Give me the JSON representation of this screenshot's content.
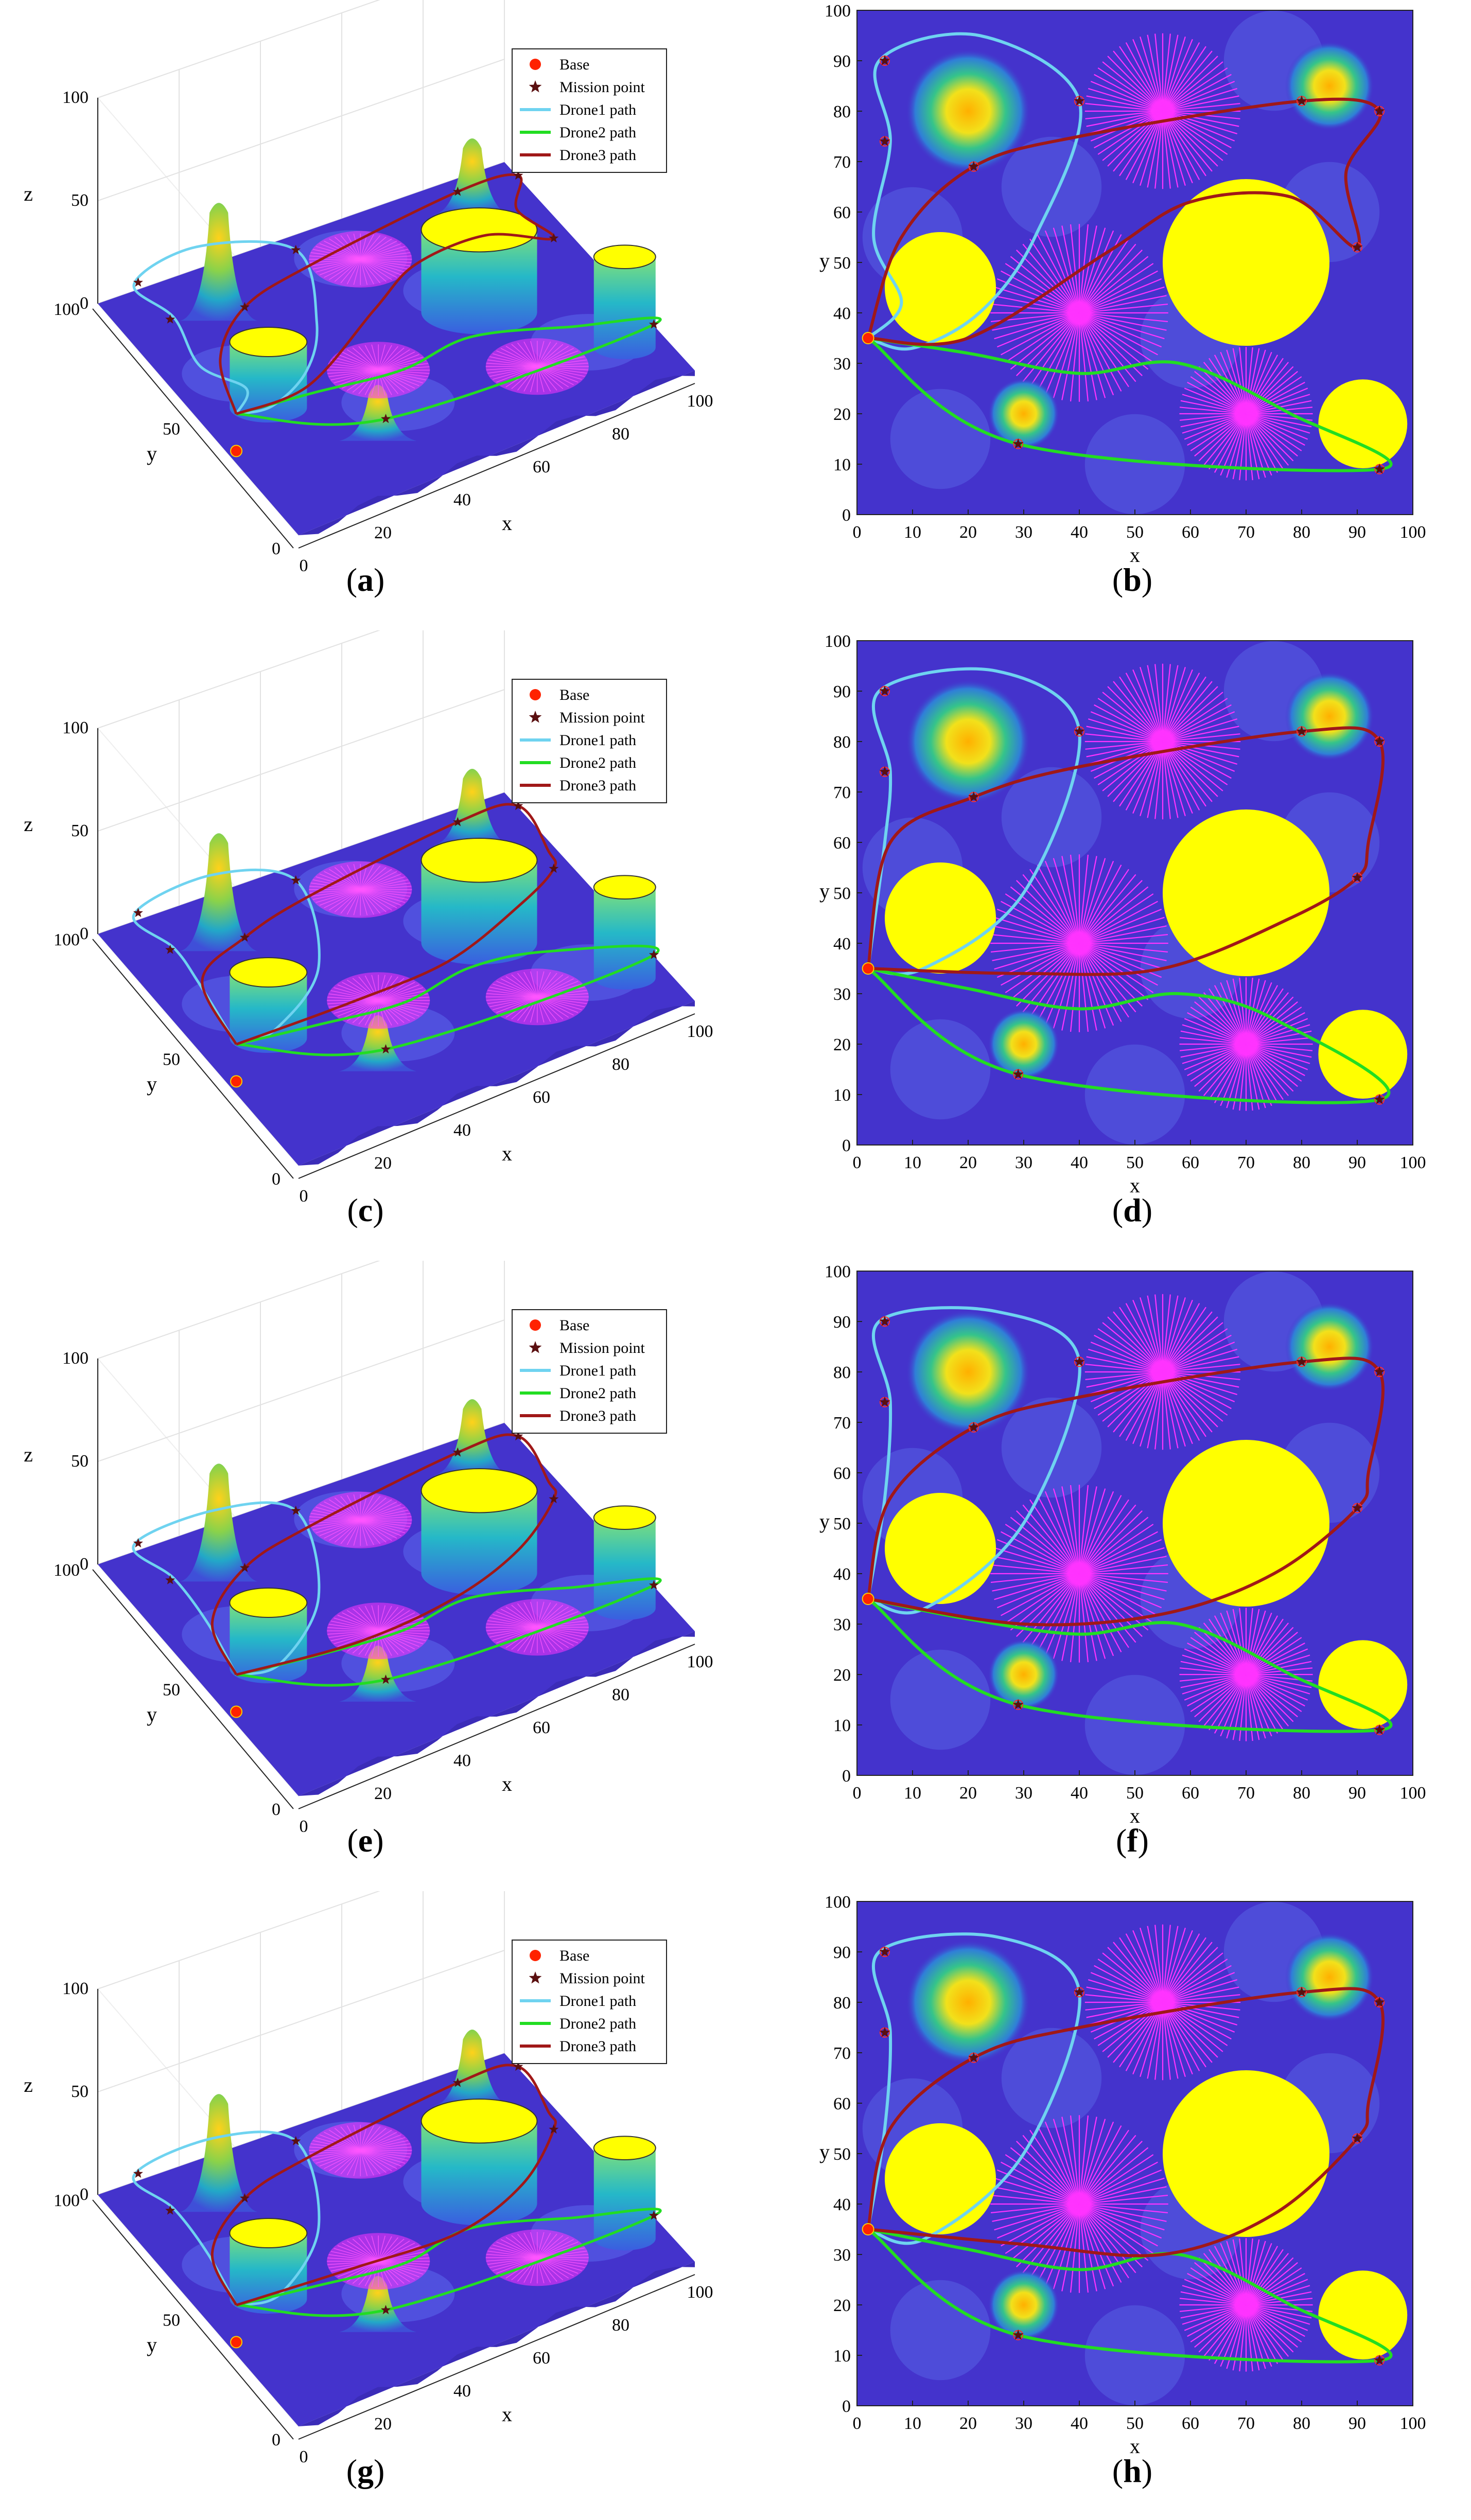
{
  "figure": {
    "row_captions": [
      [
        "a",
        "b"
      ],
      [
        "c",
        "d"
      ],
      [
        "e",
        "f"
      ],
      [
        "g",
        "h"
      ]
    ]
  },
  "legend": {
    "entries": [
      {
        "label": "Base",
        "marker": "dot",
        "color": "#ff2200"
      },
      {
        "label": "Mission point",
        "marker": "star",
        "color": "#5a0f10"
      },
      {
        "label": "Drone1 path",
        "marker": "line",
        "color": "#6fd3f0"
      },
      {
        "label": "Drone2 path",
        "marker": "line",
        "color": "#22dd22"
      },
      {
        "label": "Drone3 path",
        "marker": "line",
        "color": "#a01818"
      }
    ]
  },
  "colors": {
    "terrain": "#4433cc",
    "obstacle_cylinder": "#ffff00",
    "radar": "#ff33ff",
    "drone1": "#6fd3f0",
    "drone2": "#22dd22",
    "drone3": "#a01818",
    "mission": "#5a0f10",
    "base": "#ff2200"
  },
  "chart_data": [
    {
      "panel": "a",
      "type": "surface3d",
      "xlabel": "x",
      "ylabel": "y",
      "zlabel": "z",
      "x_ticks": [
        "0",
        "20",
        "40",
        "60",
        "80",
        "100"
      ],
      "y_ticks": [
        "0",
        "50",
        "100"
      ],
      "z_ticks": [
        "0",
        "50",
        "100"
      ],
      "legend": "top-right"
    },
    {
      "panel": "b",
      "type": "line",
      "xlabel": "x",
      "ylabel": "y",
      "xlim": [
        0,
        100
      ],
      "ylim": [
        0,
        100
      ],
      "x_ticks": [
        "0",
        "10",
        "20",
        "30",
        "40",
        "50",
        "60",
        "70",
        "80",
        "90",
        "100"
      ],
      "y_ticks": [
        "0",
        "10",
        "20",
        "30",
        "40",
        "50",
        "60",
        "70",
        "80",
        "90",
        "100"
      ],
      "base": [
        2,
        35
      ],
      "mission_points": [
        [
          5,
          90
        ],
        [
          5,
          74
        ],
        [
          21,
          69
        ],
        [
          40,
          82
        ],
        [
          80,
          82
        ],
        [
          94,
          80
        ],
        [
          90,
          53
        ],
        [
          29,
          14
        ],
        [
          94,
          9
        ]
      ],
      "obstacles": [
        {
          "type": "cylinder",
          "x": 15,
          "y": 45,
          "r": 10
        },
        {
          "type": "cylinder",
          "x": 70,
          "y": 50,
          "r": 15
        },
        {
          "type": "cylinder",
          "x": 91,
          "y": 18,
          "r": 8
        },
        {
          "type": "radar",
          "x": 55,
          "y": 80,
          "r": 14
        },
        {
          "type": "radar",
          "x": 40,
          "y": 40,
          "r": 16
        },
        {
          "type": "radar",
          "x": 70,
          "y": 20,
          "r": 12
        },
        {
          "type": "peak",
          "x": 20,
          "y": 80,
          "r": 7
        },
        {
          "type": "peak",
          "x": 85,
          "y": 85,
          "r": 5
        },
        {
          "type": "peak",
          "x": 30,
          "y": 20,
          "r": 4
        }
      ],
      "series": [
        {
          "name": "Drone1 path",
          "points": [
            [
              2,
              35
            ],
            [
              8,
              42
            ],
            [
              3,
              55
            ],
            [
              6,
              74
            ],
            [
              4,
              90
            ],
            [
              22,
              95
            ],
            [
              40,
              82
            ],
            [
              32,
              55
            ],
            [
              22,
              40
            ],
            [
              10,
              33
            ],
            [
              2,
              35
            ]
          ]
        },
        {
          "name": "Drone2 path",
          "points": [
            [
              2,
              35
            ],
            [
              29,
              14
            ],
            [
              94,
              9
            ],
            [
              78,
              20
            ],
            [
              58,
              30
            ],
            [
              40,
              28
            ],
            [
              20,
              32
            ],
            [
              2,
              35
            ]
          ]
        },
        {
          "name": "Drone3 path",
          "points": [
            [
              2,
              35
            ],
            [
              8,
              55
            ],
            [
              21,
              69
            ],
            [
              40,
              75
            ],
            [
              80,
              82
            ],
            [
              94,
              80
            ],
            [
              88,
              68
            ],
            [
              90,
              53
            ],
            [
              78,
              63
            ],
            [
              60,
              62
            ],
            [
              45,
              52
            ],
            [
              20,
              35
            ],
            [
              2,
              35
            ]
          ]
        }
      ]
    },
    {
      "panel": "c",
      "type": "surface3d",
      "xlabel": "x",
      "ylabel": "y",
      "zlabel": "z",
      "x_ticks": [
        "0",
        "20",
        "40",
        "60",
        "80",
        "100"
      ],
      "y_ticks": [
        "0",
        "50",
        "100"
      ],
      "z_ticks": [
        "0",
        "50",
        "100"
      ],
      "legend": "top-right"
    },
    {
      "panel": "d",
      "type": "line",
      "xlabel": "x",
      "ylabel": "y",
      "xlim": [
        0,
        100
      ],
      "ylim": [
        0,
        100
      ],
      "x_ticks": [
        "0",
        "10",
        "20",
        "30",
        "40",
        "50",
        "60",
        "70",
        "80",
        "90",
        "100"
      ],
      "y_ticks": [
        "0",
        "10",
        "20",
        "30",
        "40",
        "50",
        "60",
        "70",
        "80",
        "90",
        "100"
      ],
      "base": [
        2,
        35
      ],
      "mission_points": [
        [
          5,
          90
        ],
        [
          5,
          74
        ],
        [
          21,
          69
        ],
        [
          40,
          82
        ],
        [
          80,
          82
        ],
        [
          94,
          80
        ],
        [
          90,
          53
        ],
        [
          29,
          14
        ],
        [
          94,
          9
        ]
      ],
      "obstacles": [
        {
          "type": "cylinder",
          "x": 15,
          "y": 45,
          "r": 10
        },
        {
          "type": "cylinder",
          "x": 70,
          "y": 50,
          "r": 15
        },
        {
          "type": "cylinder",
          "x": 91,
          "y": 18,
          "r": 8
        },
        {
          "type": "radar",
          "x": 55,
          "y": 80,
          "r": 14
        },
        {
          "type": "radar",
          "x": 40,
          "y": 40,
          "r": 16
        },
        {
          "type": "radar",
          "x": 70,
          "y": 20,
          "r": 12
        },
        {
          "type": "peak",
          "x": 20,
          "y": 80,
          "r": 7
        },
        {
          "type": "peak",
          "x": 85,
          "y": 85,
          "r": 5
        },
        {
          "type": "peak",
          "x": 30,
          "y": 20,
          "r": 4
        }
      ],
      "series": [
        {
          "name": "Drone1 path",
          "points": [
            [
              2,
              35
            ],
            [
              5,
              60
            ],
            [
              6,
              74
            ],
            [
              4,
              90
            ],
            [
              25,
              94
            ],
            [
              40,
              82
            ],
            [
              30,
              50
            ],
            [
              12,
              35
            ],
            [
              2,
              35
            ]
          ]
        },
        {
          "name": "Drone2 path",
          "points": [
            [
              2,
              35
            ],
            [
              29,
              14
            ],
            [
              94,
              9
            ],
            [
              75,
              25
            ],
            [
              58,
              30
            ],
            [
              40,
              27
            ],
            [
              20,
              31
            ],
            [
              2,
              35
            ]
          ]
        },
        {
          "name": "Drone3 path",
          "points": [
            [
              2,
              35
            ],
            [
              6,
              60
            ],
            [
              21,
              69
            ],
            [
              40,
              75
            ],
            [
              80,
              82
            ],
            [
              94,
              80
            ],
            [
              92,
              60
            ],
            [
              90,
              53
            ],
            [
              78,
              45
            ],
            [
              55,
              35
            ],
            [
              30,
              34
            ],
            [
              2,
              35
            ]
          ]
        }
      ]
    },
    {
      "panel": "e",
      "type": "surface3d",
      "xlabel": "x",
      "ylabel": "y",
      "zlabel": "z",
      "x_ticks": [
        "0",
        "20",
        "40",
        "60",
        "80",
        "100"
      ],
      "y_ticks": [
        "0",
        "50",
        "100"
      ],
      "z_ticks": [
        "0",
        "50",
        "100"
      ],
      "legend": "top-right"
    },
    {
      "panel": "f",
      "type": "line",
      "xlabel": "x",
      "ylabel": "y",
      "xlim": [
        0,
        100
      ],
      "ylim": [
        0,
        100
      ],
      "x_ticks": [
        "0",
        "10",
        "20",
        "30",
        "40",
        "50",
        "60",
        "70",
        "80",
        "90",
        "100"
      ],
      "y_ticks": [
        "0",
        "10",
        "20",
        "30",
        "40",
        "50",
        "60",
        "70",
        "80",
        "90",
        "100"
      ],
      "base": [
        2,
        35
      ],
      "mission_points": [
        [
          5,
          90
        ],
        [
          5,
          74
        ],
        [
          21,
          69
        ],
        [
          40,
          82
        ],
        [
          80,
          82
        ],
        [
          94,
          80
        ],
        [
          90,
          53
        ],
        [
          29,
          14
        ],
        [
          94,
          9
        ]
      ],
      "obstacles": [
        {
          "type": "cylinder",
          "x": 15,
          "y": 45,
          "r": 10
        },
        {
          "type": "cylinder",
          "x": 70,
          "y": 50,
          "r": 15
        },
        {
          "type": "cylinder",
          "x": 91,
          "y": 18,
          "r": 8
        },
        {
          "type": "radar",
          "x": 55,
          "y": 80,
          "r": 14
        },
        {
          "type": "radar",
          "x": 40,
          "y": 40,
          "r": 16
        },
        {
          "type": "radar",
          "x": 70,
          "y": 20,
          "r": 12
        },
        {
          "type": "peak",
          "x": 20,
          "y": 80,
          "r": 7
        },
        {
          "type": "peak",
          "x": 85,
          "y": 85,
          "r": 5
        },
        {
          "type": "peak",
          "x": 30,
          "y": 20,
          "r": 4
        }
      ],
      "series": [
        {
          "name": "Drone1 path",
          "points": [
            [
              2,
              35
            ],
            [
              5,
              55
            ],
            [
              6,
              74
            ],
            [
              4,
              90
            ],
            [
              25,
              92
            ],
            [
              40,
              82
            ],
            [
              30,
              50
            ],
            [
              12,
              33
            ],
            [
              2,
              35
            ]
          ]
        },
        {
          "name": "Drone2 path",
          "points": [
            [
              2,
              35
            ],
            [
              29,
              14
            ],
            [
              94,
              9
            ],
            [
              78,
              20
            ],
            [
              58,
              30
            ],
            [
              40,
              28
            ],
            [
              20,
              31
            ],
            [
              2,
              35
            ]
          ]
        },
        {
          "name": "Drone3 path",
          "points": [
            [
              2,
              35
            ],
            [
              6,
              55
            ],
            [
              21,
              69
            ],
            [
              40,
              75
            ],
            [
              80,
              82
            ],
            [
              94,
              80
            ],
            [
              92,
              60
            ],
            [
              90,
              53
            ],
            [
              75,
              40
            ],
            [
              55,
              32
            ],
            [
              30,
              30
            ],
            [
              2,
              35
            ]
          ]
        }
      ]
    },
    {
      "panel": "g",
      "type": "surface3d",
      "xlabel": "x",
      "ylabel": "y",
      "zlabel": "z",
      "x_ticks": [
        "0",
        "20",
        "40",
        "60",
        "80",
        "100"
      ],
      "y_ticks": [
        "0",
        "50",
        "100"
      ],
      "z_ticks": [
        "0",
        "50",
        "100"
      ],
      "legend": "top-right"
    },
    {
      "panel": "h",
      "type": "line",
      "xlabel": "x",
      "ylabel": "y",
      "xlim": [
        0,
        100
      ],
      "ylim": [
        0,
        100
      ],
      "x_ticks": [
        "0",
        "10",
        "20",
        "30",
        "40",
        "50",
        "60",
        "70",
        "80",
        "90",
        "100"
      ],
      "y_ticks": [
        "0",
        "10",
        "20",
        "30",
        "40",
        "50",
        "60",
        "70",
        "80",
        "90",
        "100"
      ],
      "base": [
        2,
        35
      ],
      "mission_points": [
        [
          5,
          90
        ],
        [
          5,
          74
        ],
        [
          21,
          69
        ],
        [
          40,
          82
        ],
        [
          80,
          82
        ],
        [
          94,
          80
        ],
        [
          90,
          53
        ],
        [
          29,
          14
        ],
        [
          94,
          9
        ]
      ],
      "obstacles": [
        {
          "type": "cylinder",
          "x": 15,
          "y": 45,
          "r": 10
        },
        {
          "type": "cylinder",
          "x": 70,
          "y": 50,
          "r": 15
        },
        {
          "type": "cylinder",
          "x": 91,
          "y": 18,
          "r": 8
        },
        {
          "type": "radar",
          "x": 55,
          "y": 80,
          "r": 14
        },
        {
          "type": "radar",
          "x": 40,
          "y": 40,
          "r": 16
        },
        {
          "type": "radar",
          "x": 70,
          "y": 20,
          "r": 12
        },
        {
          "type": "peak",
          "x": 20,
          "y": 80,
          "r": 7
        },
        {
          "type": "peak",
          "x": 85,
          "y": 85,
          "r": 5
        },
        {
          "type": "peak",
          "x": 30,
          "y": 20,
          "r": 4
        }
      ],
      "series": [
        {
          "name": "Drone1 path",
          "points": [
            [
              2,
              35
            ],
            [
              5,
              55
            ],
            [
              6,
              74
            ],
            [
              4,
              90
            ],
            [
              25,
              93
            ],
            [
              40,
              82
            ],
            [
              30,
              50
            ],
            [
              12,
              33
            ],
            [
              2,
              35
            ]
          ]
        },
        {
          "name": "Drone2 path",
          "points": [
            [
              2,
              35
            ],
            [
              29,
              14
            ],
            [
              94,
              9
            ],
            [
              78,
              20
            ],
            [
              58,
              30
            ],
            [
              40,
              27
            ],
            [
              20,
              31
            ],
            [
              2,
              35
            ]
          ]
        },
        {
          "name": "Drone3 path",
          "points": [
            [
              2,
              35
            ],
            [
              6,
              55
            ],
            [
              21,
              69
            ],
            [
              40,
              75
            ],
            [
              80,
              82
            ],
            [
              94,
              80
            ],
            [
              92,
              60
            ],
            [
              90,
              53
            ],
            [
              75,
              38
            ],
            [
              55,
              30
            ],
            [
              30,
              32
            ],
            [
              2,
              35
            ]
          ]
        }
      ]
    }
  ]
}
